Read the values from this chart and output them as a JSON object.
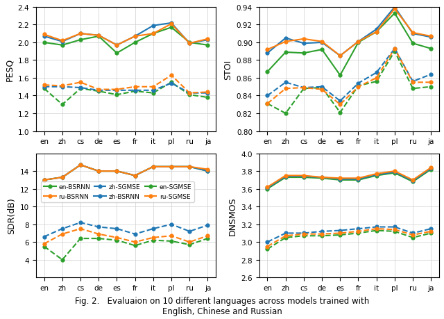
{
  "languages": [
    "en",
    "zh",
    "cs",
    "de",
    "es",
    "fr",
    "it",
    "pl",
    "ru",
    "ja"
  ],
  "pesq": {
    "en_bsrnn": [
      2.0,
      1.97,
      2.03,
      2.07,
      1.88,
      2.0,
      2.1,
      2.17,
      2.0,
      1.97
    ],
    "zh_bsrnn": [
      2.07,
      2.01,
      2.1,
      2.08,
      1.97,
      2.07,
      2.19,
      2.22,
      1.99,
      2.03
    ],
    "ru_bsrnn": [
      2.09,
      2.02,
      2.1,
      2.08,
      1.97,
      2.07,
      2.1,
      2.21,
      1.99,
      2.04
    ],
    "en_sgmse": [
      1.48,
      1.3,
      1.48,
      1.45,
      1.41,
      1.45,
      1.43,
      1.55,
      1.41,
      1.38
    ],
    "zh_sgmse": [
      1.5,
      1.5,
      1.49,
      1.46,
      1.46,
      1.46,
      1.46,
      1.54,
      1.43,
      1.43
    ],
    "ru_sgmse": [
      1.52,
      1.51,
      1.55,
      1.47,
      1.47,
      1.5,
      1.5,
      1.63,
      1.43,
      1.44
    ]
  },
  "stoi": {
    "en_bsrnn": [
      0.867,
      0.889,
      0.888,
      0.892,
      0.863,
      0.9,
      0.912,
      0.933,
      0.899,
      0.893
    ],
    "zh_bsrnn": [
      0.888,
      0.905,
      0.899,
      0.9,
      0.885,
      0.901,
      0.915,
      0.94,
      0.91,
      0.906
    ],
    "ru_bsrnn": [
      0.892,
      0.901,
      0.904,
      0.901,
      0.885,
      0.901,
      0.912,
      0.938,
      0.911,
      0.907
    ],
    "en_sgmse": [
      0.831,
      0.82,
      0.848,
      0.849,
      0.821,
      0.851,
      0.856,
      0.89,
      0.848,
      0.85
    ],
    "zh_sgmse": [
      0.84,
      0.855,
      0.849,
      0.85,
      0.834,
      0.854,
      0.866,
      0.893,
      0.856,
      0.864
    ],
    "ru_sgmse": [
      0.831,
      0.848,
      0.849,
      0.847,
      0.83,
      0.85,
      0.86,
      0.893,
      0.855,
      0.855
    ]
  },
  "sdr": {
    "en_bsrnn": [
      13.0,
      13.3,
      14.7,
      14.0,
      14.0,
      13.5,
      14.5,
      14.5,
      14.5,
      14.0
    ],
    "zh_bsrnn": [
      13.0,
      13.3,
      14.7,
      14.0,
      14.0,
      13.5,
      14.5,
      14.5,
      14.5,
      14.0
    ],
    "ru_bsrnn": [
      13.0,
      13.3,
      14.7,
      14.0,
      14.0,
      13.5,
      14.5,
      14.5,
      14.5,
      14.2
    ],
    "en_sgmse": [
      5.5,
      4.0,
      6.4,
      6.4,
      6.2,
      5.6,
      6.2,
      6.1,
      5.7,
      6.4
    ],
    "zh_sgmse": [
      6.6,
      7.5,
      8.2,
      7.7,
      7.5,
      6.9,
      7.5,
      8.0,
      7.2,
      7.9
    ],
    "ru_sgmse": [
      5.8,
      6.9,
      7.5,
      6.9,
      6.5,
      6.0,
      6.5,
      6.7,
      6.0,
      6.7
    ]
  },
  "dnsmos": {
    "en_bsrnn": [
      3.6,
      3.73,
      3.73,
      3.72,
      3.7,
      3.7,
      3.75,
      3.78,
      3.68,
      3.82
    ],
    "zh_bsrnn": [
      3.61,
      3.74,
      3.74,
      3.73,
      3.71,
      3.71,
      3.76,
      3.79,
      3.69,
      3.83
    ],
    "ru_bsrnn": [
      3.62,
      3.75,
      3.75,
      3.73,
      3.72,
      3.72,
      3.77,
      3.8,
      3.7,
      3.84
    ],
    "en_sgmse": [
      2.92,
      3.05,
      3.07,
      3.07,
      3.08,
      3.1,
      3.13,
      3.12,
      3.05,
      3.1
    ],
    "zh_sgmse": [
      3.0,
      3.1,
      3.1,
      3.12,
      3.13,
      3.15,
      3.17,
      3.17,
      3.1,
      3.15
    ],
    "ru_sgmse": [
      2.95,
      3.07,
      3.09,
      3.09,
      3.1,
      3.12,
      3.15,
      3.14,
      3.08,
      3.12
    ]
  },
  "colors": {
    "green": "#2ca02c",
    "blue": "#1f77b4",
    "orange": "#ff7f0e"
  },
  "caption": "Fig. 2.   Evaluaion on 10 different languages across models trained with\nEnglish, Chinese and Russian"
}
